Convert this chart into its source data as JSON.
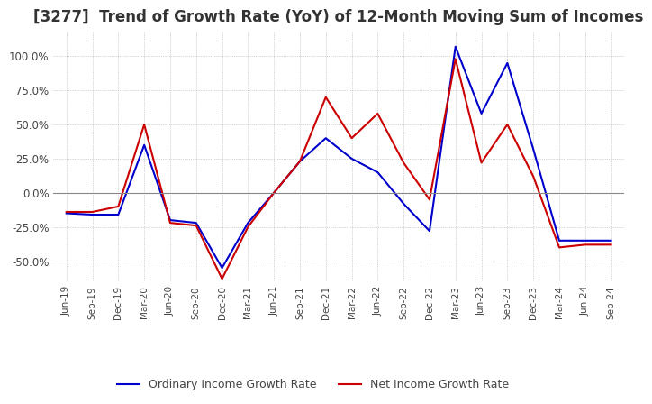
{
  "title": "[3277]  Trend of Growth Rate (YoY) of 12-Month Moving Sum of Incomes",
  "title_fontsize": 12,
  "ylim": [
    -0.65,
    1.18
  ],
  "yticks": [
    -0.5,
    -0.25,
    0.0,
    0.25,
    0.5,
    0.75,
    1.0
  ],
  "ytick_labels": [
    "-50.0%",
    "-25.0%",
    "0.0%",
    "25.0%",
    "50.0%",
    "75.0%",
    "100.0%"
  ],
  "background_color": "#ffffff",
  "grid_color": "#aaaaaa",
  "ordinary_color": "#0000cc",
  "net_color": "#cc0000",
  "legend_labels": [
    "Ordinary Income Growth Rate",
    "Net Income Growth Rate"
  ],
  "x_labels": [
    "Jun-19",
    "Sep-19",
    "Dec-19",
    "Mar-20",
    "Jun-20",
    "Sep-20",
    "Dec-20",
    "Mar-21",
    "Jun-21",
    "Sep-21",
    "Dec-21",
    "Mar-22",
    "Jun-22",
    "Sep-22",
    "Dec-22",
    "Mar-23",
    "Jun-23",
    "Sep-23",
    "Dec-23",
    "Mar-24",
    "Jun-24",
    "Sep-24"
  ],
  "ordinary": [
    -0.15,
    -0.16,
    -0.16,
    0.35,
    -0.2,
    -0.22,
    -0.55,
    -0.22,
    0.0,
    0.23,
    0.4,
    0.25,
    0.15,
    -0.08,
    -0.28,
    1.07,
    0.58,
    0.95,
    0.32,
    -0.35,
    -0.35,
    -0.35
  ],
  "net": [
    -0.14,
    -0.14,
    -0.1,
    0.5,
    -0.22,
    -0.24,
    -0.63,
    -0.25,
    0.0,
    0.23,
    0.7,
    0.4,
    0.58,
    0.22,
    -0.05,
    0.98,
    0.22,
    0.5,
    0.12,
    -0.4,
    -0.38,
    -0.38
  ]
}
